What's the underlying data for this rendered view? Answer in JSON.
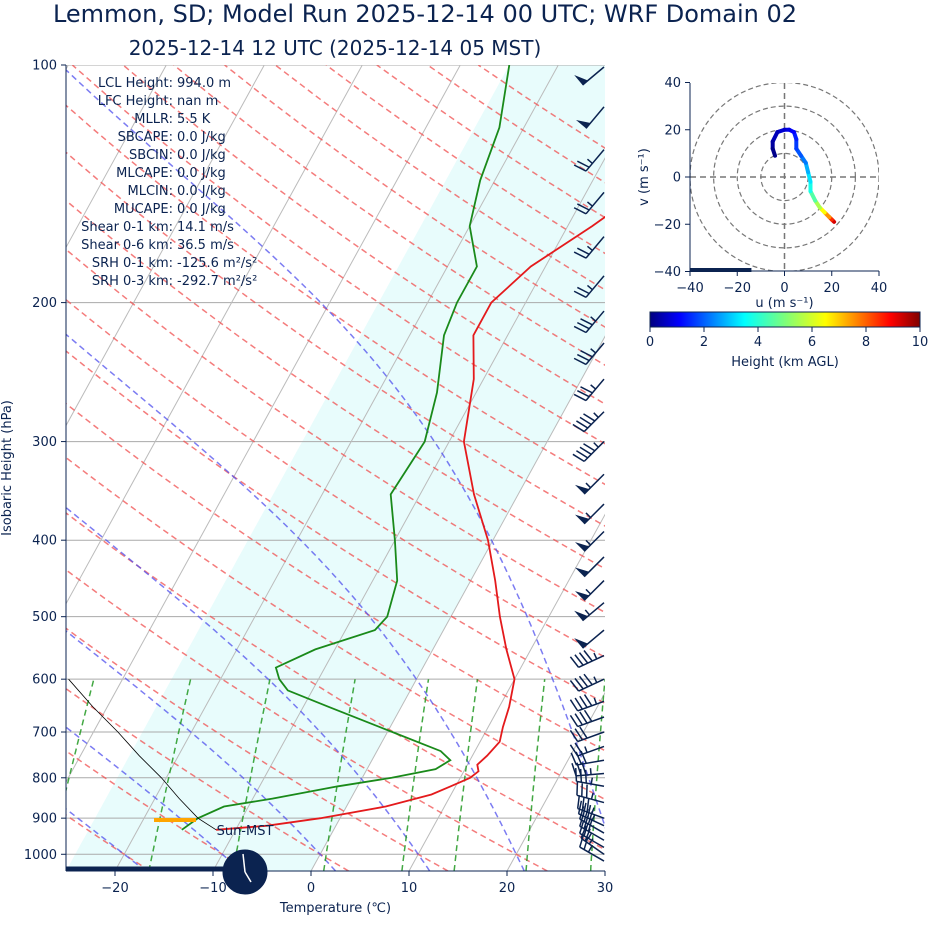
{
  "header": {
    "title": "Lemmon, SD; Model Run 2025-12-14 00 UTC; WRF Domain 02",
    "subtitle": "2025-12-14 12 UTC  (2025-12-14 05 MST)"
  },
  "chart_data": [
    {
      "type": "line",
      "title": "Skew-T log-P sounding",
      "xlabel": "Temperature (℃)",
      "ylabel": "Isobaric Height (hPa)",
      "xlim": [
        -25,
        30
      ],
      "ylim": [
        1050,
        100
      ],
      "y_scale": "log",
      "x_ticks": [
        "−20",
        "−10",
        "0",
        "10",
        "20",
        "30"
      ],
      "y_ticks": [
        "100",
        "200",
        "300",
        "400",
        "500",
        "600",
        "700",
        "800",
        "900",
        "1000"
      ],
      "grid": true,
      "series": [
        {
          "name": "Temperature",
          "color": "#e41a1c",
          "points": [
            [
              931,
              -12.0
            ],
            [
              920,
              -7.0
            ],
            [
              900,
              -2.0
            ],
            [
              870,
              4.0
            ],
            [
              840,
              8.0
            ],
            [
              820,
              9.5
            ],
            [
              800,
              11.0
            ],
            [
              785,
              11.5
            ],
            [
              770,
              11.0
            ],
            [
              750,
              11.5
            ],
            [
              720,
              12.0
            ],
            [
              690,
              11.5
            ],
            [
              650,
              11.0
            ],
            [
              600,
              10.0
            ],
            [
              550,
              7.5
            ],
            [
              500,
              5.0
            ],
            [
              450,
              2.5
            ],
            [
              400,
              -0.5
            ],
            [
              350,
              -4.5
            ],
            [
              300,
              -8.5
            ],
            [
              250,
              -11.0
            ],
            [
              220,
              -13.5
            ],
            [
              200,
              -13.5
            ],
            [
              180,
              -11.5
            ],
            [
              160,
              -7.5
            ],
            [
              140,
              -3.5
            ],
            [
              120,
              -0.5
            ],
            [
              100,
              1.0
            ]
          ]
        },
        {
          "name": "Dewpoint",
          "color": "#1a8a1a",
          "points": [
            [
              931,
              -15.5
            ],
            [
              900,
              -14.5
            ],
            [
              870,
              -12.5
            ],
            [
              850,
              -8.0
            ],
            [
              820,
              -2.0
            ],
            [
              800,
              3.0
            ],
            [
              780,
              7.0
            ],
            [
              760,
              8.0
            ],
            [
              740,
              6.5
            ],
            [
              700,
              0.5
            ],
            [
              650,
              -7.5
            ],
            [
              620,
              -12.5
            ],
            [
              600,
              -14.0
            ],
            [
              580,
              -15.0
            ],
            [
              550,
              -12.0
            ],
            [
              520,
              -7.0
            ],
            [
              500,
              -6.5
            ],
            [
              450,
              -7.5
            ],
            [
              400,
              -10.0
            ],
            [
              350,
              -13.0
            ],
            [
              300,
              -12.5
            ],
            [
              260,
              -14.0
            ],
            [
              220,
              -16.5
            ],
            [
              200,
              -17.0
            ],
            [
              180,
              -17.0
            ],
            [
              160,
              -20.0
            ],
            [
              140,
              -21.5
            ],
            [
              120,
              -22.5
            ],
            [
              100,
              -25.0
            ]
          ]
        },
        {
          "name": "Parcel",
          "color": "#000000",
          "points": [
            [
              931,
              -12.0
            ],
            [
              900,
              -14.5
            ],
            [
              850,
              -17.5
            ],
            [
              800,
              -20.5
            ],
            [
              750,
              -24.0
            ],
            [
              700,
              -27.5
            ],
            [
              650,
              -31.5
            ],
            [
              600,
              -35.5
            ]
          ]
        }
      ],
      "wind_barbs": [
        {
          "p": 1020,
          "ws": 25,
          "wd": 300
        },
        {
          "p": 1000,
          "ws": 25,
          "wd": 305
        },
        {
          "p": 980,
          "ws": 25,
          "wd": 300
        },
        {
          "p": 960,
          "ws": 30,
          "wd": 300
        },
        {
          "p": 940,
          "ws": 30,
          "wd": 300
        },
        {
          "p": 920,
          "ws": 35,
          "wd": 295
        },
        {
          "p": 900,
          "ws": 35,
          "wd": 290
        },
        {
          "p": 860,
          "ws": 35,
          "wd": 285
        },
        {
          "p": 820,
          "ws": 35,
          "wd": 280
        },
        {
          "p": 790,
          "ws": 35,
          "wd": 265
        },
        {
          "p": 760,
          "ws": 30,
          "wd": 260
        },
        {
          "p": 730,
          "ws": 25,
          "wd": 250
        },
        {
          "p": 700,
          "ws": 30,
          "wd": 250
        },
        {
          "p": 670,
          "ws": 40,
          "wd": 250
        },
        {
          "p": 640,
          "ws": 45,
          "wd": 250
        },
        {
          "p": 600,
          "ws": 45,
          "wd": 245
        },
        {
          "p": 560,
          "ws": 45,
          "wd": 245
        },
        {
          "p": 520,
          "ws": 50,
          "wd": 230
        },
        {
          "p": 480,
          "ws": 55,
          "wd": 230
        },
        {
          "p": 450,
          "ws": 55,
          "wd": 225
        },
        {
          "p": 420,
          "ws": 50,
          "wd": 225
        },
        {
          "p": 390,
          "ws": 55,
          "wd": 225
        },
        {
          "p": 360,
          "ws": 55,
          "wd": 225
        },
        {
          "p": 330,
          "ws": 55,
          "wd": 225
        },
        {
          "p": 300,
          "ws": 45,
          "wd": 225
        },
        {
          "p": 275,
          "ws": 45,
          "wd": 225
        },
        {
          "p": 250,
          "ws": 35,
          "wd": 220
        },
        {
          "p": 225,
          "ws": 35,
          "wd": 220
        },
        {
          "p": 205,
          "ws": 35,
          "wd": 220
        },
        {
          "p": 185,
          "ws": 25,
          "wd": 220
        },
        {
          "p": 165,
          "ws": 25,
          "wd": 220
        },
        {
          "p": 145,
          "ws": 25,
          "wd": 220
        },
        {
          "p": 128,
          "ws": 25,
          "wd": 220
        },
        {
          "p": 113,
          "ws": 50,
          "wd": 220
        },
        {
          "p": 100,
          "ws": 50,
          "wd": 230
        }
      ],
      "annotations": [
        "LCL Height: 994.0 m",
        "LFC Height: nan m",
        "MLLR: 5.5 K",
        "SBCAPE: 0.0 J/kg",
        "SBCIN: 0.0 J/kg",
        "MLCAPE: 0.0 J/kg",
        "MLCIN: 0.0 J/kg",
        "MUCAPE: 0.0 J/kg",
        "Shear 0-1 km: 14.1 m/s",
        "Shear 0-6 km: 36.5 m/s",
        "SRH 0-1 km: -125.6 m²/s²",
        "SRH 0-3 km: -292.7 m²/s²"
      ],
      "clock_label": "Sun-MST",
      "freezing_level_marker_p": 905
    },
    {
      "type": "line",
      "title": "Hodograph",
      "xlabel": "u (m s⁻¹)",
      "ylabel": "v (m s⁻¹)",
      "xlim": [
        -40,
        40
      ],
      "ylim": [
        -40,
        40
      ],
      "x_ticks": [
        "−40",
        "−20",
        "0",
        "20",
        "40"
      ],
      "y_ticks": [
        "40",
        "20",
        "0",
        "−20",
        "−40"
      ],
      "ring_radii": [
        10,
        20,
        30,
        40
      ],
      "points": [
        [
          21,
          -19,
          9.5
        ],
        [
          20,
          -18,
          9.0
        ],
        [
          19,
          -17,
          8.0
        ],
        [
          17,
          -15,
          7.0
        ],
        [
          15,
          -13,
          6.0
        ],
        [
          13,
          -10,
          5.0
        ],
        [
          11,
          -6,
          4.0
        ],
        [
          11,
          -2,
          3.5
        ],
        [
          10,
          2,
          3.0
        ],
        [
          9,
          6,
          2.5
        ],
        [
          7,
          9,
          2.0
        ],
        [
          5,
          12,
          1.8
        ],
        [
          5,
          16,
          1.5
        ],
        [
          4,
          19,
          1.2
        ],
        [
          2,
          20,
          1.0
        ],
        [
          0,
          20,
          0.8
        ],
        [
          -3,
          19,
          0.6
        ],
        [
          -5,
          15,
          0.4
        ],
        [
          -5,
          12,
          0.2
        ],
        [
          -4,
          9,
          0.0
        ]
      ],
      "colorbar": {
        "label": "Height (km AGL)",
        "ticks": [
          "0",
          "2",
          "4",
          "6",
          "8",
          "10"
        ],
        "range": [
          0,
          10
        ]
      }
    }
  ]
}
